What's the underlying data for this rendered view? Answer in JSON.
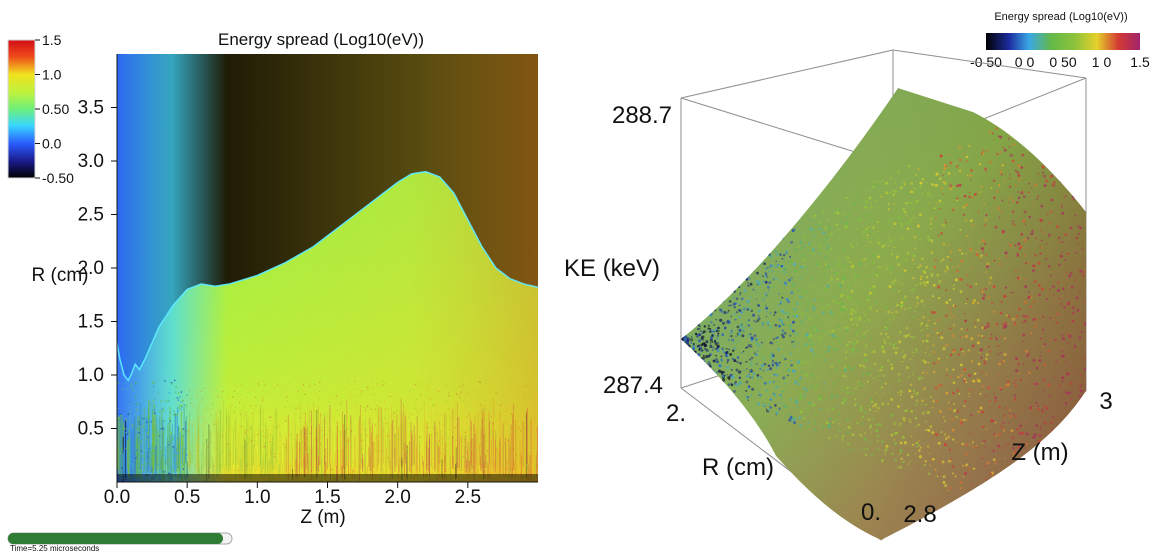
{
  "chart_data": [
    {
      "type": "heatmap",
      "title": "Energy spread (Log10(eV))",
      "xlabel": "Z (m)",
      "ylabel": "R (cm)",
      "x_ticks": [
        "0.0",
        "0.5",
        "1.0",
        "1.5",
        "2.0",
        "2.5"
      ],
      "y_ticks": [
        "0.5",
        "1.0",
        "1.5",
        "2.0",
        "2.5",
        "3.0",
        "3.5"
      ],
      "xlim": [
        0,
        3
      ],
      "ylim": [
        0,
        4
      ],
      "colorbar": {
        "ticks": [
          "1.5",
          "1.0",
          "0.50",
          "0.0",
          "-0.50"
        ],
        "range": [
          -0.5,
          1.5
        ]
      },
      "boundary": {
        "z": [
          0.0,
          0.02,
          0.05,
          0.08,
          0.1,
          0.13,
          0.16,
          0.2,
          0.3,
          0.4,
          0.5,
          0.6,
          0.7,
          0.8,
          1.0,
          1.2,
          1.4,
          1.6,
          1.8,
          2.0,
          2.1,
          2.2,
          2.3,
          2.4,
          2.5,
          2.6,
          2.7,
          2.8,
          2.9,
          3.0
        ],
        "r": [
          1.3,
          1.15,
          1.0,
          0.95,
          1.0,
          1.1,
          1.05,
          1.15,
          1.45,
          1.65,
          1.8,
          1.85,
          1.83,
          1.85,
          1.93,
          2.05,
          2.2,
          2.4,
          2.6,
          2.8,
          2.88,
          2.9,
          2.85,
          2.7,
          2.45,
          2.2,
          2.0,
          1.9,
          1.85,
          1.82
        ]
      },
      "time_label": "Time=5.25 microseconds"
    },
    {
      "type": "scatter",
      "dimension": "3d",
      "title": "Energy spread (Log10(eV))",
      "xlabel": "R (cm)",
      "ylabel": "Z (m)",
      "zlabel": "KE (keV)",
      "z_range_labels": [
        "288.7",
        "287.4"
      ],
      "r_range_labels": [
        "2.",
        "0."
      ],
      "zpos_range_labels": [
        "2.8",
        "3"
      ],
      "colorbar": {
        "ticks": [
          "-0 50",
          "0 0",
          "0 50",
          "1 0",
          "1.5"
        ],
        "range": [
          -0.5,
          1.5
        ]
      }
    }
  ]
}
